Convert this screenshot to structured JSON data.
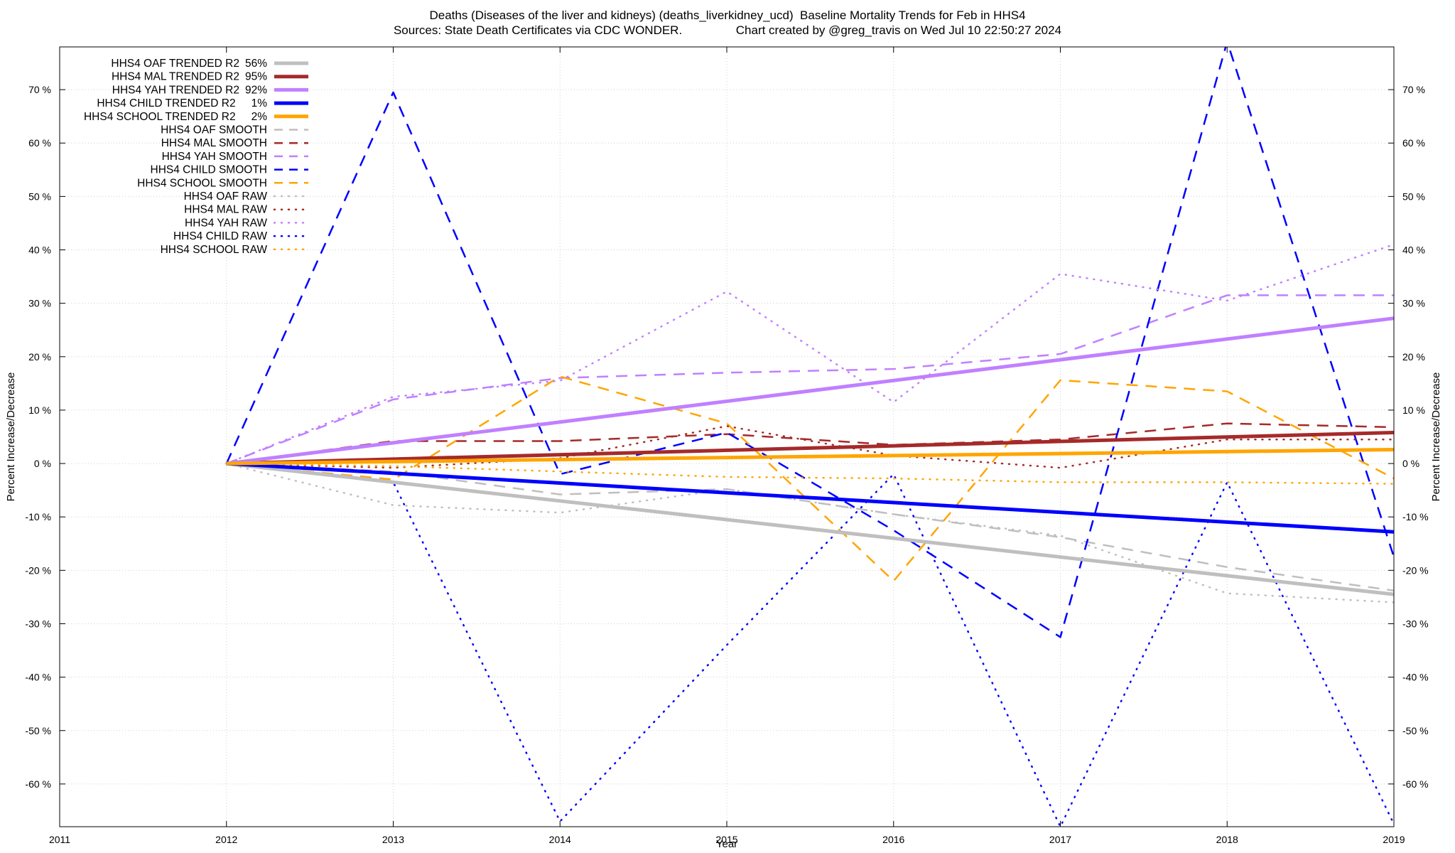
{
  "header": {
    "title_line1": "Deaths (Diseases of the liver and kidneys) (deaths_liverkidney_ucd)  Baseline Mortality Trends for Feb in HHS4",
    "title_line2": "Sources: State Death Certificates via CDC WONDER.                Chart created by @greg_travis on Wed Jul 10 22:50:27 2024"
  },
  "chart_data": {
    "type": "line",
    "xlabel": "Year",
    "ylabel": "Percent Increase/Decrease",
    "xlim": [
      2011,
      2019
    ],
    "ylim": [
      -68,
      78
    ],
    "xticks": [
      "2011",
      "2012",
      "2013",
      "2014",
      "2015",
      "2016",
      "2017",
      "2018",
      "2019"
    ],
    "yticks": [
      "70 %",
      "60 %",
      "50 %",
      "40 %",
      "30 %",
      "20 %",
      "10 %",
      "0 %",
      "-10 %",
      "-20 %",
      "-30 %",
      "-40 %",
      "-50 %",
      "-60 %"
    ],
    "grid": true,
    "legend_position": "top-left",
    "series": [
      {
        "name": "HHS4 OAF TRENDED R2",
        "r2": "56%",
        "color": "#bfbfbf",
        "style": "solid",
        "x": [
          2012,
          2019
        ],
        "y": [
          0,
          -24.5
        ]
      },
      {
        "name": "HHS4 MAL TRENDED R2",
        "r2": "95%",
        "color": "#a52a2a",
        "style": "solid",
        "x": [
          2012,
          2019
        ],
        "y": [
          0,
          5.8
        ]
      },
      {
        "name": "HHS4 YAH TRENDED R2",
        "r2": "92%",
        "color": "#c080ff",
        "style": "solid",
        "x": [
          2012,
          2019
        ],
        "y": [
          0,
          27.2
        ]
      },
      {
        "name": "HHS4 CHILD TRENDED R2",
        "r2": "1%",
        "color": "#0000ff",
        "style": "solid",
        "x": [
          2012,
          2019
        ],
        "y": [
          0,
          -12.8
        ]
      },
      {
        "name": "HHS4 SCHOOL TRENDED R2",
        "r2": "2%",
        "color": "#ffa500",
        "style": "solid",
        "x": [
          2012,
          2019
        ],
        "y": [
          0,
          2.6
        ]
      },
      {
        "name": "HHS4 OAF SMOOTH",
        "color": "#bfbfbf",
        "style": "dashed",
        "x": [
          2012,
          2013,
          2014,
          2015,
          2016,
          2017,
          2018,
          2019
        ],
        "y": [
          0,
          -1.5,
          -5.8,
          -4.8,
          -9.5,
          -13.8,
          -19.4,
          -23.8
        ]
      },
      {
        "name": "HHS4 MAL SMOOTH",
        "color": "#a52a2a",
        "style": "dashed",
        "x": [
          2012,
          2013,
          2014,
          2015,
          2016,
          2017,
          2018,
          2019
        ],
        "y": [
          0,
          4.2,
          4.2,
          5.5,
          3.5,
          4.5,
          7.5,
          6.8
        ]
      },
      {
        "name": "HHS4 YAH SMOOTH",
        "color": "#c080ff",
        "style": "dashed",
        "x": [
          2012,
          2013,
          2014,
          2015,
          2016,
          2017,
          2018,
          2019
        ],
        "y": [
          0,
          12,
          16,
          17,
          17.7,
          20.5,
          31.5,
          31.5
        ]
      },
      {
        "name": "HHS4 CHILD SMOOTH",
        "color": "#0000ff",
        "style": "dashed",
        "x": [
          2012,
          2013,
          2014,
          2015,
          2016,
          2017,
          2018,
          2019
        ],
        "y": [
          0,
          69.5,
          -2,
          5.8,
          -12.5,
          -32.5,
          79,
          -17.5
        ]
      },
      {
        "name": "HHS4 SCHOOL SMOOTH",
        "color": "#ffa500",
        "style": "dashed",
        "x": [
          2012,
          2013,
          2014,
          2015,
          2016,
          2017,
          2018,
          2019
        ],
        "y": [
          0,
          -3,
          16.3,
          7.5,
          -22,
          15.6,
          13.5,
          -2.8
        ]
      },
      {
        "name": "HHS4 OAF RAW",
        "color": "#bfbfbf",
        "style": "dotted",
        "x": [
          2012,
          2013,
          2014,
          2015,
          2016,
          2017,
          2018,
          2019
        ],
        "y": [
          0,
          -7.8,
          -9.2,
          -4.8,
          -9.5,
          -13.5,
          -24.3,
          -26
        ]
      },
      {
        "name": "HHS4 MAL RAW",
        "color": "#a52a2a",
        "style": "dotted",
        "x": [
          2012,
          2013,
          2014,
          2015,
          2016,
          2017,
          2018,
          2019
        ],
        "y": [
          0,
          -0.8,
          1,
          7,
          1.5,
          -0.8,
          4.5,
          4.5
        ]
      },
      {
        "name": "HHS4 YAH RAW",
        "color": "#c080ff",
        "style": "dotted",
        "x": [
          2012,
          2013,
          2014,
          2015,
          2016,
          2017,
          2018,
          2019
        ],
        "y": [
          0,
          12.5,
          15.5,
          32.2,
          11.5,
          35.5,
          30.5,
          41
        ]
      },
      {
        "name": "HHS4 CHILD RAW",
        "color": "#0000ff",
        "style": "dotted",
        "x": [
          2012,
          2013,
          2014,
          2015,
          2016,
          2017,
          2018,
          2019
        ],
        "y": [
          0,
          -3.5,
          -67,
          -34,
          -2,
          -68,
          -3.5,
          -67.5
        ]
      },
      {
        "name": "HHS4 SCHOOL RAW",
        "color": "#ffa500",
        "style": "dotted",
        "x": [
          2012,
          2013,
          2014,
          2015,
          2016,
          2017,
          2018,
          2019
        ],
        "y": [
          0,
          -0.5,
          -1.5,
          -2.5,
          -2.8,
          -3.5,
          -3.5,
          -3.8
        ]
      }
    ]
  }
}
